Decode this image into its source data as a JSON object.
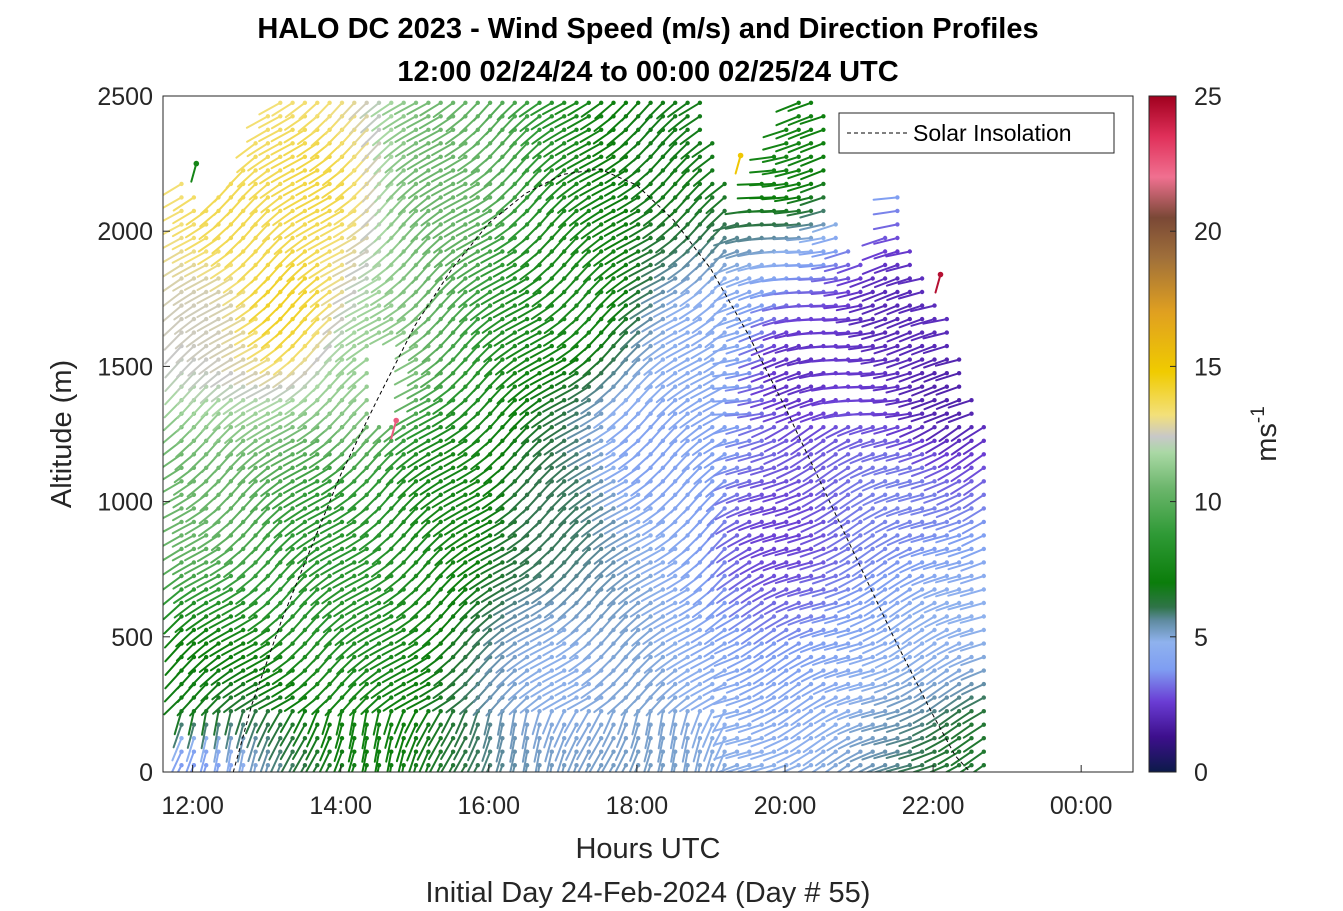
{
  "chart_data": {
    "type": "wind barb profile (quiver)",
    "title": "HALO DC 2023 - Wind Speed (m/s) and Direction Profiles",
    "subtitle": "12:00 02/24/24 to 00:00 02/25/24  UTC",
    "xlabel": "Hours UTC",
    "xlabel2": "Initial Day 24-Feb-2024 (Day # 55)",
    "ylabel": "Altitude (m)",
    "xlim": [
      11.6,
      24.7
    ],
    "ylim": [
      0,
      2500
    ],
    "xticks": [
      {
        "value": 12,
        "label": "12:00"
      },
      {
        "value": 14,
        "label": "14:00"
      },
      {
        "value": 16,
        "label": "16:00"
      },
      {
        "value": 18,
        "label": "18:00"
      },
      {
        "value": 20,
        "label": "20:00"
      },
      {
        "value": 22,
        "label": "22:00"
      },
      {
        "value": 24,
        "label": "00:00"
      }
    ],
    "yticks": [
      {
        "value": 0,
        "label": "0"
      },
      {
        "value": 500,
        "label": "500"
      },
      {
        "value": 1000,
        "label": "1000"
      },
      {
        "value": 1500,
        "label": "1500"
      },
      {
        "value": 2000,
        "label": "2000"
      },
      {
        "value": 2500,
        "label": "2500"
      }
    ],
    "legend": {
      "label": "Solar Insolation",
      "placement": "top-right"
    },
    "solar_insolation": {
      "style": "dashed black",
      "x": [
        11.6,
        12.55,
        12.8,
        13.2,
        13.6,
        14.0,
        14.5,
        15.0,
        15.5,
        16.0,
        16.5,
        17.0,
        17.5,
        18.0,
        18.5,
        19.0,
        19.5,
        20.0,
        20.5,
        21.0,
        21.5,
        22.0,
        22.3,
        22.5,
        24.7
      ],
      "y": [
        0,
        0,
        250,
        560,
        830,
        1100,
        1380,
        1650,
        1860,
        2030,
        2140,
        2210,
        2230,
        2170,
        2040,
        1860,
        1620,
        1350,
        1060,
        770,
        480,
        210,
        60,
        0,
        0
      ]
    },
    "colorbar": {
      "label": "ms",
      "label_superscript": "-1",
      "range": [
        0,
        25
      ],
      "ticks": [
        {
          "value": 0,
          "label": "0"
        },
        {
          "value": 5,
          "label": "5"
        },
        {
          "value": 10,
          "label": "10"
        },
        {
          "value": 15,
          "label": "15"
        },
        {
          "value": 20,
          "label": "20"
        },
        {
          "value": 25,
          "label": "25"
        }
      ],
      "stops": [
        {
          "value": 0,
          "color": "#0c1a4a"
        },
        {
          "value": 1.3,
          "color": "#3d0f8c"
        },
        {
          "value": 2.6,
          "color": "#6a3cd4"
        },
        {
          "value": 3.8,
          "color": "#7f9ef2"
        },
        {
          "value": 4.8,
          "color": "#8fb2ee"
        },
        {
          "value": 5.6,
          "color": "#5f8ba0"
        },
        {
          "value": 6.1,
          "color": "#2f7448"
        },
        {
          "value": 7.0,
          "color": "#0b7d0b"
        },
        {
          "value": 8.8,
          "color": "#2f9a36"
        },
        {
          "value": 10.5,
          "color": "#6cb66c"
        },
        {
          "value": 11.8,
          "color": "#a9d8a4"
        },
        {
          "value": 12.4,
          "color": "#c8c8c8"
        },
        {
          "value": 13.2,
          "color": "#f3e07a"
        },
        {
          "value": 14.8,
          "color": "#f0cb00"
        },
        {
          "value": 17.0,
          "color": "#e0a020"
        },
        {
          "value": 19.0,
          "color": "#a0703a"
        },
        {
          "value": 20.5,
          "color": "#7a4836"
        },
        {
          "value": 22.0,
          "color": "#f07090"
        },
        {
          "value": 23.5,
          "color": "#e0305a"
        },
        {
          "value": 25,
          "color": "#a0001e"
        }
      ]
    },
    "barb_grid": {
      "x_start": 11.85,
      "x_step": 0.1667,
      "x_end": 22.8,
      "alt_step": 50,
      "profile_tops": [
        {
          "x": 11.85,
          "alt": 2200
        },
        {
          "x": 12.2,
          "alt": 2100
        },
        {
          "x": 12.8,
          "alt": 2300
        },
        {
          "x": 13.1,
          "alt": 2500
        },
        {
          "x": 18.9,
          "alt": 2500
        },
        {
          "x": 19.3,
          "alt": 2050
        },
        {
          "x": 19.6,
          "alt": 2150
        },
        {
          "x": 20.2,
          "alt": 2500
        },
        {
          "x": 20.5,
          "alt": 2500
        },
        {
          "x": 20.7,
          "alt": 2000
        },
        {
          "x": 21.2,
          "alt": 1850
        },
        {
          "x": 21.5,
          "alt": 2150
        },
        {
          "x": 21.8,
          "alt": 1850
        },
        {
          "x": 22.2,
          "alt": 1700
        },
        {
          "x": 22.6,
          "alt": 1350
        },
        {
          "x": 22.8,
          "alt": 1250
        }
      ],
      "gap": {
        "x_from": 14.45,
        "x_to": 15.0,
        "alt_from": 1280,
        "alt_to": 1580
      },
      "speed_field": [
        {
          "x": 12.0,
          "alt": 0,
          "speed": 3.5
        },
        {
          "x": 12.0,
          "alt": 300,
          "speed": 7.0
        },
        {
          "x": 12.0,
          "alt": 1000,
          "speed": 10.5
        },
        {
          "x": 12.3,
          "alt": 1700,
          "speed": 12.5
        },
        {
          "x": 12.6,
          "alt": 2050,
          "speed": 13.8
        },
        {
          "x": 13.3,
          "alt": 1750,
          "speed": 14.5
        },
        {
          "x": 13.8,
          "alt": 2200,
          "speed": 14.0
        },
        {
          "x": 14.0,
          "alt": 900,
          "speed": 8.5
        },
        {
          "x": 14.5,
          "alt": 1500,
          "speed": 11.5
        },
        {
          "x": 15.5,
          "alt": 1100,
          "speed": 7.5
        },
        {
          "x": 15.5,
          "alt": 2200,
          "speed": 10.5
        },
        {
          "x": 17.0,
          "alt": 400,
          "speed": 4.8
        },
        {
          "x": 17.0,
          "alt": 1000,
          "speed": 6.0
        },
        {
          "x": 17.2,
          "alt": 1800,
          "speed": 7.8
        },
        {
          "x": 18.6,
          "alt": 2300,
          "speed": 6.8
        },
        {
          "x": 18.2,
          "alt": 1200,
          "speed": 4.0
        },
        {
          "x": 19.0,
          "alt": 1600,
          "speed": 4.5
        },
        {
          "x": 20.0,
          "alt": 900,
          "speed": 2.6
        },
        {
          "x": 20.2,
          "alt": 1500,
          "speed": 2.2
        },
        {
          "x": 20.0,
          "alt": 2300,
          "speed": 7.5
        },
        {
          "x": 21.5,
          "alt": 1700,
          "speed": 2.0
        },
        {
          "x": 21.6,
          "alt": 1000,
          "speed": 3.5
        },
        {
          "x": 22.3,
          "alt": 500,
          "speed": 4.8
        },
        {
          "x": 22.6,
          "alt": 100,
          "speed": 6.5
        },
        {
          "x": 22.2,
          "alt": 1400,
          "speed": 1.8
        }
      ],
      "highlighted_barbs": [
        {
          "x": 12.05,
          "alt": 2250,
          "speed": 7.5
        },
        {
          "x": 14.75,
          "alt": 1300,
          "speed": 22.5
        },
        {
          "x": 19.4,
          "alt": 2280,
          "speed": 15.0
        },
        {
          "x": 22.1,
          "alt": 1840,
          "speed": 24.5
        }
      ]
    }
  }
}
